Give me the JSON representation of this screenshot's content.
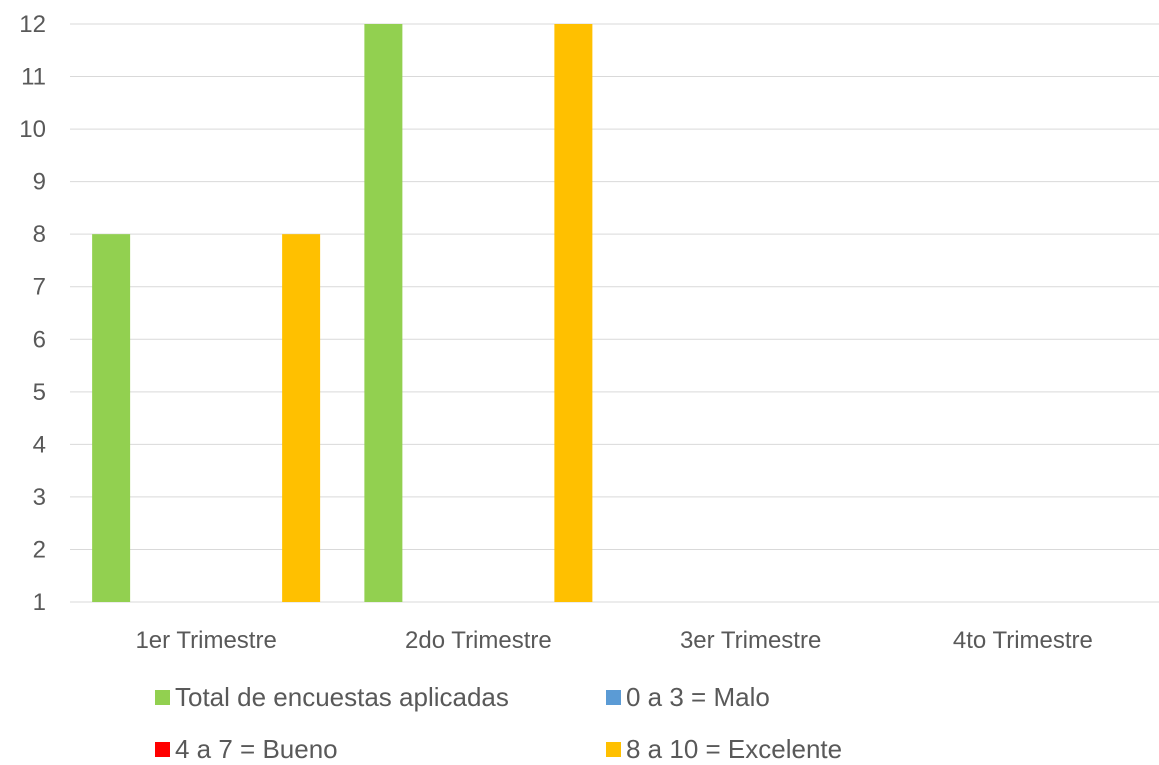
{
  "chart_data": {
    "type": "bar",
    "categories": [
      "1er Trimestre",
      "2do Trimestre",
      "3er Trimestre",
      "4to Trimestre"
    ],
    "series": [
      {
        "name": "Total de encuestas aplicadas",
        "color": "#92D050",
        "values": [
          8,
          12,
          null,
          null
        ]
      },
      {
        "name": "0 a 3 = Malo",
        "color": "#5B9BD5",
        "values": [
          null,
          null,
          null,
          null
        ]
      },
      {
        "name": "4 a 7 = Bueno",
        "color": "#FF0000",
        "values": [
          null,
          null,
          null,
          null
        ]
      },
      {
        "name": "8 a 10 = Excelente",
        "color": "#FFC000",
        "values": [
          8,
          12,
          null,
          null
        ]
      }
    ],
    "yticks": [
      1,
      2,
      3,
      4,
      5,
      6,
      7,
      8,
      9,
      10,
      11,
      12
    ],
    "ylim": [
      1,
      12
    ],
    "grid": true,
    "legend_position": "bottom",
    "title": "",
    "xlabel": "",
    "ylabel": ""
  }
}
